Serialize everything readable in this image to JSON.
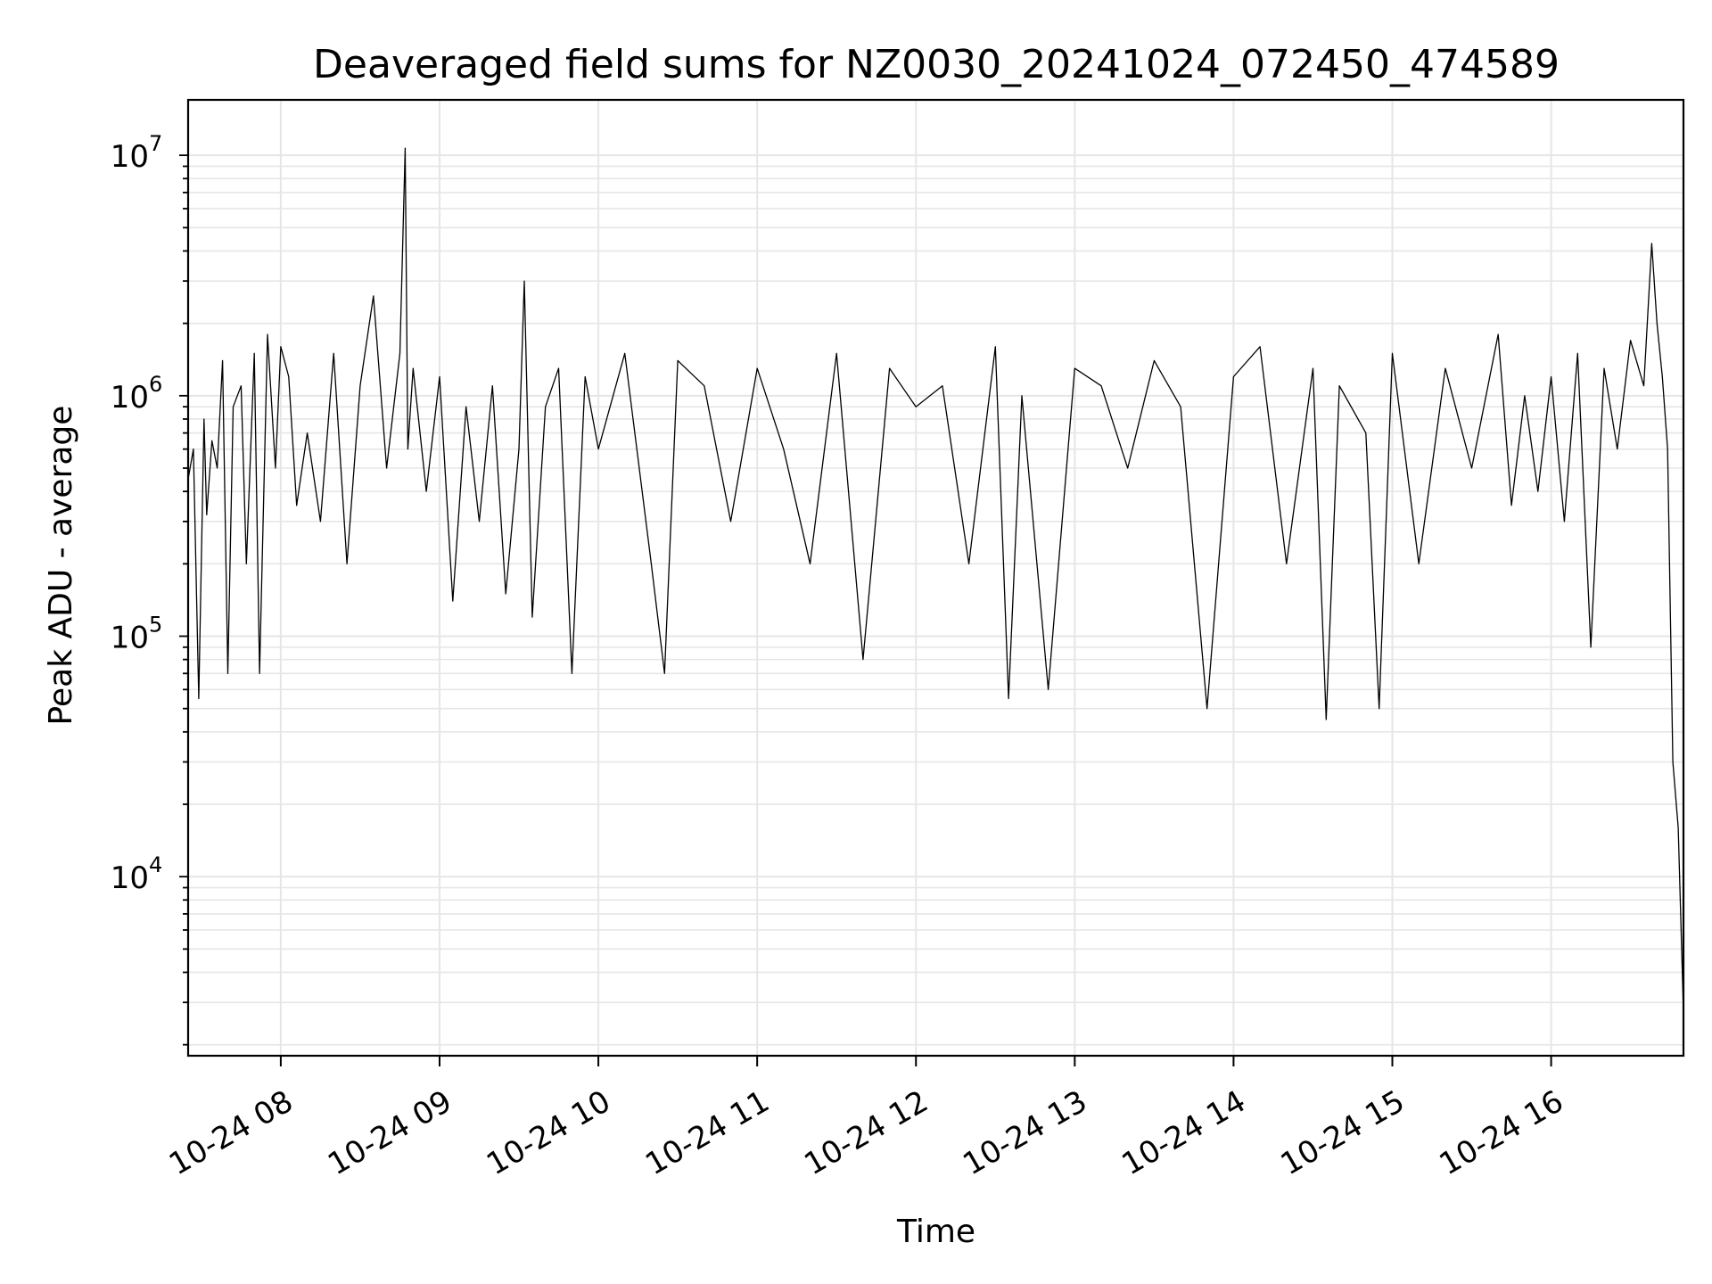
{
  "chart_data": {
    "type": "line",
    "title": "Deaveraged field sums for NZ0030_20241024_072450_474589",
    "xlabel": "Time",
    "ylabel": "Peak ADU - average",
    "yscale": "log",
    "grid": true,
    "line_color": "#000000",
    "grid_color": "#e6e6e6",
    "xlim": [
      "2024-10-24 07:25",
      "2024-10-24 16:50"
    ],
    "ylim": [
      1800,
      17000000
    ],
    "x_ticks": [
      {
        "value": "2024-10-24 08:00",
        "label": "10-24 08"
      },
      {
        "value": "2024-10-24 09:00",
        "label": "10-24 09"
      },
      {
        "value": "2024-10-24 10:00",
        "label": "10-24 10"
      },
      {
        "value": "2024-10-24 11:00",
        "label": "10-24 11"
      },
      {
        "value": "2024-10-24 12:00",
        "label": "10-24 12"
      },
      {
        "value": "2024-10-24 13:00",
        "label": "10-24 13"
      },
      {
        "value": "2024-10-24 14:00",
        "label": "10-24 14"
      },
      {
        "value": "2024-10-24 15:00",
        "label": "10-24 15"
      },
      {
        "value": "2024-10-24 16:00",
        "label": "10-24 16"
      }
    ],
    "y_ticks": [
      {
        "value": 10000,
        "base": "10",
        "exp": "4"
      },
      {
        "value": 100000,
        "base": "10",
        "exp": "5"
      },
      {
        "value": 1000000,
        "base": "10",
        "exp": "6"
      },
      {
        "value": 10000000,
        "base": "10",
        "exp": "7"
      }
    ],
    "series": [
      {
        "x": [
          "2024-10-24 07:25",
          "2024-10-24 07:27",
          "2024-10-24 07:29",
          "2024-10-24 07:31",
          "2024-10-24 07:32",
          "2024-10-24 07:34",
          "2024-10-24 07:36",
          "2024-10-24 07:38",
          "2024-10-24 07:40",
          "2024-10-24 07:42",
          "2024-10-24 07:45",
          "2024-10-24 07:47",
          "2024-10-24 07:50",
          "2024-10-24 07:52",
          "2024-10-24 07:55",
          "2024-10-24 07:58",
          "2024-10-24 08:00",
          "2024-10-24 08:03",
          "2024-10-24 08:06",
          "2024-10-24 08:10",
          "2024-10-24 08:15",
          "2024-10-24 08:20",
          "2024-10-24 08:25",
          "2024-10-24 08:30",
          "2024-10-24 08:35",
          "2024-10-24 08:40",
          "2024-10-24 08:45",
          "2024-10-24 08:47",
          "2024-10-24 08:48",
          "2024-10-24 08:50",
          "2024-10-24 08:55",
          "2024-10-24 09:00",
          "2024-10-24 09:05",
          "2024-10-24 09:10",
          "2024-10-24 09:15",
          "2024-10-24 09:20",
          "2024-10-24 09:25",
          "2024-10-24 09:30",
          "2024-10-24 09:32",
          "2024-10-24 09:35",
          "2024-10-24 09:40",
          "2024-10-24 09:45",
          "2024-10-24 09:50",
          "2024-10-24 09:55",
          "2024-10-24 10:00",
          "2024-10-24 10:10",
          "2024-10-24 10:20",
          "2024-10-24 10:25",
          "2024-10-24 10:30",
          "2024-10-24 10:40",
          "2024-10-24 10:50",
          "2024-10-24 11:00",
          "2024-10-24 11:10",
          "2024-10-24 11:20",
          "2024-10-24 11:30",
          "2024-10-24 11:40",
          "2024-10-24 11:50",
          "2024-10-24 12:00",
          "2024-10-24 12:10",
          "2024-10-24 12:20",
          "2024-10-24 12:30",
          "2024-10-24 12:35",
          "2024-10-24 12:40",
          "2024-10-24 12:50",
          "2024-10-24 13:00",
          "2024-10-24 13:10",
          "2024-10-24 13:20",
          "2024-10-24 13:30",
          "2024-10-24 13:40",
          "2024-10-24 13:50",
          "2024-10-24 14:00",
          "2024-10-24 14:10",
          "2024-10-24 14:20",
          "2024-10-24 14:30",
          "2024-10-24 14:35",
          "2024-10-24 14:40",
          "2024-10-24 14:50",
          "2024-10-24 14:55",
          "2024-10-24 15:00",
          "2024-10-24 15:10",
          "2024-10-24 15:20",
          "2024-10-24 15:30",
          "2024-10-24 15:40",
          "2024-10-24 15:45",
          "2024-10-24 15:50",
          "2024-10-24 15:55",
          "2024-10-24 16:00",
          "2024-10-24 16:05",
          "2024-10-24 16:10",
          "2024-10-24 16:15",
          "2024-10-24 16:20",
          "2024-10-24 16:25",
          "2024-10-24 16:30",
          "2024-10-24 16:35",
          "2024-10-24 16:38",
          "2024-10-24 16:40",
          "2024-10-24 16:42",
          "2024-10-24 16:44",
          "2024-10-24 16:46",
          "2024-10-24 16:48",
          "2024-10-24 16:50"
        ],
        "y": [
          450000,
          600000,
          55000,
          800000,
          320000,
          650000,
          500000,
          1400000,
          70000,
          900000,
          1100000,
          200000,
          1500000,
          70000,
          1800000,
          500000,
          1600000,
          1200000,
          350000,
          700000,
          300000,
          1500000,
          200000,
          1100000,
          2600000,
          500000,
          1500000,
          10700000,
          600000,
          1300000,
          400000,
          1200000,
          140000,
          900000,
          300000,
          1100000,
          150000,
          600000,
          3000000,
          120000,
          900000,
          1300000,
          70000,
          1200000,
          600000,
          1500000,
          200000,
          70000,
          1400000,
          1100000,
          300000,
          1300000,
          600000,
          200000,
          1500000,
          80000,
          1300000,
          900000,
          1100000,
          200000,
          1600000,
          55000,
          1000000,
          60000,
          1300000,
          1100000,
          500000,
          1400000,
          900000,
          50000,
          1200000,
          1600000,
          200000,
          1300000,
          45000,
          1100000,
          700000,
          50000,
          1500000,
          200000,
          1300000,
          500000,
          1800000,
          350000,
          1000000,
          400000,
          1200000,
          300000,
          1500000,
          90000,
          1300000,
          600000,
          1700000,
          1100000,
          4300000,
          2000000,
          1200000,
          600000,
          30000,
          16000,
          2700
        ]
      }
    ]
  }
}
